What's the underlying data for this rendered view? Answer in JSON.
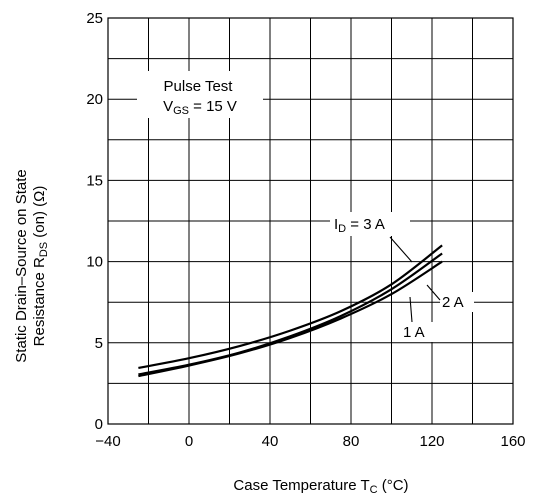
{
  "chart_data": {
    "type": "line",
    "xlim": [
      -40,
      160
    ],
    "ylim": [
      0,
      25
    ],
    "x_ticks": [
      -40,
      0,
      40,
      80,
      120,
      160
    ],
    "x_tick_labels": [
      "−40",
      "0",
      "40",
      "80",
      "120",
      "160"
    ],
    "x_minor_step": 20,
    "y_ticks": [
      0,
      5,
      10,
      15,
      20,
      25
    ],
    "y_tick_labels": [
      "0",
      "5",
      "10",
      "15",
      "20",
      "25"
    ],
    "y_minor_step": 2.5,
    "grid": true,
    "xlabel": {
      "main": "Case Temperature T",
      "sub": "C",
      "unit": " (°C)"
    },
    "ylabel": {
      "line1": "Static Drain–Source on State",
      "line2_main": "Resistance R",
      "line2_sub": "DS",
      "line2_rest": " (on) (Ω)"
    },
    "conditions": {
      "line1": "Pulse Test",
      "line2_main": "V",
      "line2_sub": "GS",
      "line2_rest": " = 15 V"
    },
    "series": [
      {
        "label_main": "I",
        "label_sub": "D",
        "label_rest": " = 3 A",
        "x": [
          -25,
          0,
          25,
          50,
          75,
          100,
          125
        ],
        "y": [
          3.45,
          4.05,
          4.8,
          5.75,
          6.95,
          8.6,
          11.0
        ]
      },
      {
        "label": "2 A",
        "x": [
          -25,
          0,
          25,
          50,
          75,
          100,
          125
        ],
        "y": [
          3.05,
          3.65,
          4.4,
          5.4,
          6.65,
          8.3,
          10.5
        ]
      },
      {
        "label": "1 A",
        "x": [
          -25,
          0,
          25,
          50,
          75,
          100,
          125
        ],
        "y": [
          2.95,
          3.6,
          4.35,
          5.3,
          6.5,
          8.0,
          10.0
        ]
      }
    ]
  }
}
